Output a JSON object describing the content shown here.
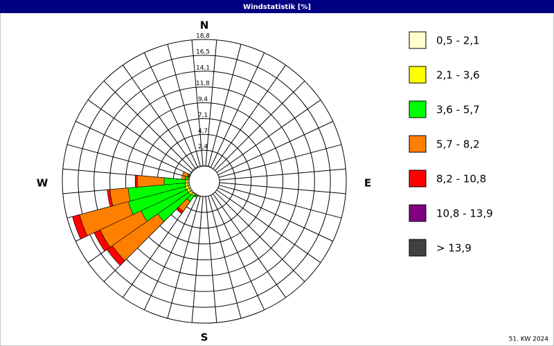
{
  "chart_data": {
    "type": "windrose",
    "title": "Windstatistik [%]",
    "directions": {
      "north": "N",
      "east": "E",
      "south": "S",
      "west": "W"
    },
    "footer": "51. KW 2024",
    "ylim": [
      0,
      18.8
    ],
    "yticks": [
      {
        "value": 2.35,
        "label": "2,4"
      },
      {
        "value": 4.7,
        "label": "4,7"
      },
      {
        "value": 7.05,
        "label": "7,1"
      },
      {
        "value": 9.4,
        "label": "9,4"
      },
      {
        "value": 11.75,
        "label": "11,8"
      },
      {
        "value": 14.1,
        "label": "14,1"
      },
      {
        "value": 16.45,
        "label": "16,5"
      },
      {
        "value": 18.8,
        "label": "18,8"
      }
    ],
    "grid": true,
    "legend": "right",
    "series": [
      {
        "name": "0,5 - 2,1",
        "color": "#ffffcc",
        "values": [
          0.1,
          0.1,
          0.1,
          0,
          0,
          0,
          0,
          0,
          0,
          0,
          0,
          0,
          0,
          0,
          0,
          0,
          0,
          0,
          0,
          0,
          0.1,
          0.1,
          0.1,
          0.2,
          0.2,
          0.2,
          0.2,
          0.2,
          0.1,
          0.1,
          0.1,
          0.1,
          0.1,
          0.1,
          0.1,
          0.1
        ]
      },
      {
        "name": "2,1 - 3,6",
        "color": "#ffff00",
        "values": [
          0,
          0,
          0,
          0,
          0,
          0,
          0,
          0,
          0,
          0,
          0,
          0,
          0,
          0,
          0,
          0,
          0,
          0,
          0,
          0,
          0,
          0.1,
          0.3,
          0.4,
          0.4,
          0.5,
          0.4,
          0.3,
          0.2,
          0.1,
          0,
          0,
          0,
          0,
          0,
          0
        ]
      },
      {
        "name": "3,6 - 5,7",
        "color": "#00ff00",
        "values": [
          0,
          0,
          0,
          0,
          0,
          0,
          0,
          0,
          0,
          0,
          0,
          0,
          0,
          0,
          0,
          0,
          0,
          0,
          0,
          0,
          0,
          0.2,
          1.0,
          5.6,
          7.5,
          8.7,
          8.5,
          3.2,
          0.3,
          0.1,
          0,
          0,
          0,
          0,
          0,
          0
        ]
      },
      {
        "name": "5,7 - 8,2",
        "color": "#ff8000",
        "values": [
          0,
          0,
          0,
          0,
          0,
          0,
          0,
          0,
          0,
          0,
          0,
          0,
          0,
          0,
          0,
          0,
          0,
          0,
          0,
          0,
          0,
          0,
          1.8,
          8.2,
          6.7,
          7.5,
          2.7,
          4.0,
          0.5,
          0.8,
          0,
          0,
          0,
          0,
          0,
          0
        ]
      },
      {
        "name": "8,2 - 10,8",
        "color": "#ff0000",
        "values": [
          0,
          0,
          0,
          0,
          0,
          0,
          0,
          0,
          0,
          0,
          0,
          0,
          0,
          0,
          0,
          0,
          0,
          0,
          0,
          0,
          0,
          0,
          0.4,
          1.0,
          1.0,
          1.1,
          0.4,
          0.3,
          0,
          0,
          0,
          0,
          0,
          0,
          0,
          0
        ]
      },
      {
        "name": "10,8 - 13,9",
        "color": "#800080",
        "values": [
          0,
          0,
          0,
          0,
          0,
          0,
          0,
          0,
          0,
          0,
          0,
          0,
          0,
          0,
          0,
          0,
          0,
          0,
          0,
          0,
          0,
          0,
          0,
          0,
          0,
          0,
          0,
          0,
          0,
          0,
          0,
          0,
          0,
          0,
          0,
          0
        ]
      },
      {
        "name": "> 13,9",
        "color": "#404040",
        "values": [
          0,
          0,
          0,
          0,
          0,
          0,
          0,
          0,
          0,
          0,
          0,
          0,
          0,
          0,
          0,
          0,
          0,
          0,
          0,
          0,
          0,
          0,
          0,
          0,
          0,
          0,
          0,
          0,
          0,
          0,
          0,
          0,
          0,
          0,
          0,
          0
        ]
      }
    ]
  }
}
